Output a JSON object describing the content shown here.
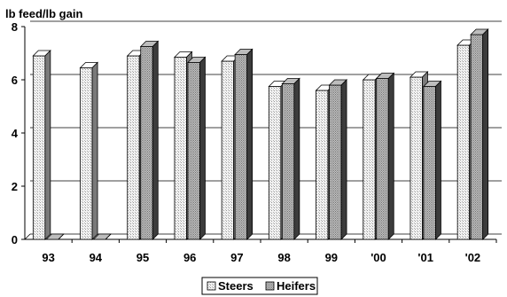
{
  "chart_data": {
    "type": "bar",
    "ylabel": "lb feed/lb gain",
    "xlabel": "",
    "ylim": [
      0,
      8
    ],
    "yticks": [
      0,
      2,
      4,
      6,
      8
    ],
    "grid": true,
    "legend_position": "bottom-center",
    "style": "3d-clustered",
    "categories": [
      "93",
      "94",
      "95",
      "96",
      "97",
      "98",
      "99",
      "'00",
      "'01",
      "'02"
    ],
    "series": [
      {
        "name": "Steers",
        "color": "#e6e6e6",
        "values": [
          6.9,
          6.45,
          6.9,
          6.85,
          6.7,
          5.75,
          5.6,
          6.0,
          6.1,
          7.3
        ]
      },
      {
        "name": "Heifers",
        "color": "#8c8c8c",
        "values": [
          0,
          0,
          7.25,
          6.65,
          6.95,
          5.85,
          5.8,
          6.05,
          5.75,
          7.7
        ]
      }
    ]
  }
}
